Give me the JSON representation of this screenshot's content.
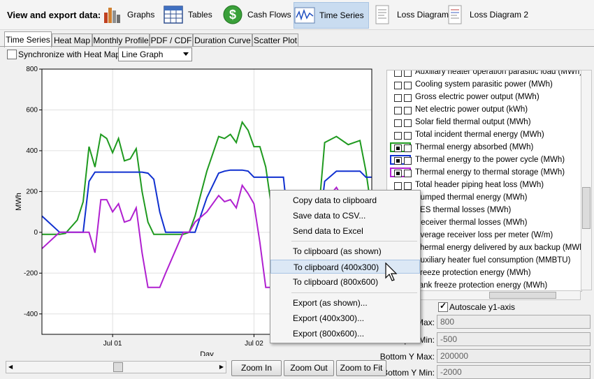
{
  "toolbar": {
    "label": "View and export data:",
    "buttons": [
      {
        "label": "Graphs",
        "icon": "bar-chart-icon"
      },
      {
        "label": "Tables",
        "icon": "table-icon"
      },
      {
        "label": "Cash Flows",
        "icon": "dollar-icon"
      },
      {
        "label": "Time Series",
        "icon": "waveform-icon",
        "active": true
      },
      {
        "label": "Loss Diagram",
        "icon": "document-icon"
      },
      {
        "label": "Loss Diagram 2",
        "icon": "document-icon"
      }
    ]
  },
  "tabs": [
    "Time Series",
    "Heat Map",
    "Monthly Profile",
    "PDF / CDF",
    "Duration Curve",
    "Scatter Plot"
  ],
  "active_tab": "Time Series",
  "sync_label": "Synchronize with Heat Map",
  "graph_type": "Line Graph",
  "variables": [
    {
      "label": "Auxiliary heater operation parasitic load (MWh)",
      "checked": false
    },
    {
      "label": "Cooling system parasitic power (MWh)",
      "checked": false
    },
    {
      "label": "Gross electric power output (MWh)",
      "checked": false
    },
    {
      "label": "Net electric power output (kWh)",
      "checked": false
    },
    {
      "label": "Solar field thermal output (MWh)",
      "checked": false
    },
    {
      "label": "Total incident thermal energy (MWh)",
      "checked": false
    },
    {
      "label": "Thermal energy absorbed (MWh)",
      "checked": true,
      "color": "#1f9a1f"
    },
    {
      "label": "Thermal energy to the power cycle (MWh)",
      "checked": true,
      "color": "#1030d0"
    },
    {
      "label": "Thermal energy to thermal storage (MWh)",
      "checked": true,
      "color": "#b020d0"
    },
    {
      "label": "Total header piping heat loss (MWh)",
      "checked": false
    },
    {
      "label": "Pumped thermal energy (MWh)",
      "checked": false
    },
    {
      "label": "TES thermal losses (MWh)",
      "checked": false
    },
    {
      "label": "Receiver thermal losses (MWh)",
      "checked": false
    },
    {
      "label": "Average receiver loss per meter (W/m)",
      "checked": false
    },
    {
      "label": "Thermal energy delivered by aux backup (MWh)",
      "checked": false
    },
    {
      "label": "Auxiliary heater fuel consumption (MMBTU)",
      "checked": false
    },
    {
      "label": "Freeze protection energy (MWh)",
      "checked": false
    },
    {
      "label": "Tank freeze protection energy (MWh)",
      "checked": false
    }
  ],
  "autoscale_label": "Autoscale y1-axis",
  "fields": [
    {
      "label": "Top Y Max:",
      "value": "800"
    },
    {
      "label": "Top Y Min:",
      "value": "-500"
    },
    {
      "label": "Bottom Y Max:",
      "value": "200000"
    },
    {
      "label": "Bottom Y Min:",
      "value": "-2000"
    }
  ],
  "buttons": {
    "zoom_in": "Zoom In",
    "zoom_out": "Zoom Out",
    "zoom_fit": "Zoom to Fit"
  },
  "context_menu": [
    "Copy data to clipboard",
    "Save data to CSV...",
    "Send data to Excel",
    "To clipboard (as shown)",
    "To clipboard (400x300)",
    "To clipboard (800x600)",
    "Export (as shown)...",
    "Export (400x300)...",
    "Export (800x600)..."
  ],
  "context_menu_hover": "To clipboard (400x300)",
  "chart_data": {
    "type": "line",
    "xlabel": "Day",
    "ylabel": "MWh",
    "ylim": [
      -500,
      800
    ],
    "xlim": [
      0,
      56
    ],
    "yticks": [
      "800",
      "600",
      "400",
      "200",
      "0",
      "-200",
      "-400"
    ],
    "xticks": [
      {
        "label": "Jul 01",
        "x": 12
      },
      {
        "label": "Jul 02",
        "x": 36
      }
    ],
    "grid": true,
    "x": [
      0,
      3,
      4,
      6,
      7,
      8,
      9,
      10,
      11,
      12,
      13,
      14,
      15,
      16,
      17,
      18,
      19,
      20,
      21,
      24,
      25,
      26,
      28,
      30,
      31,
      32,
      33,
      34,
      35,
      36,
      37,
      38,
      39,
      40,
      41,
      42,
      43,
      44,
      45,
      47,
      48,
      50,
      52,
      54,
      55,
      56
    ],
    "series": [
      {
        "name": "Thermal energy absorbed (MWh)",
        "color": "#1f9a1f",
        "values": [
          -10,
          -10,
          -5,
          60,
          150,
          420,
          320,
          480,
          460,
          390,
          460,
          350,
          360,
          410,
          200,
          50,
          -10,
          -10,
          -10,
          -10,
          0,
          80,
          300,
          470,
          460,
          480,
          440,
          540,
          500,
          420,
          420,
          320,
          120,
          -10,
          -10,
          -10,
          -10,
          -10,
          0,
          100,
          440,
          470,
          430,
          450,
          300,
          100
        ]
      },
      {
        "name": "Thermal energy to the power cycle (MWh)",
        "color": "#1030d0",
        "values": [
          80,
          0,
          0,
          0,
          0,
          250,
          295,
          295,
          295,
          295,
          295,
          295,
          295,
          295,
          295,
          290,
          260,
          100,
          0,
          0,
          0,
          0,
          170,
          290,
          300,
          305,
          305,
          305,
          300,
          270,
          270,
          270,
          270,
          270,
          270,
          0,
          0,
          0,
          0,
          0,
          250,
          300,
          300,
          300,
          270,
          270
        ]
      },
      {
        "name": "Thermal energy to thermal storage (MWh)",
        "color": "#b020d0",
        "values": [
          -80,
          0,
          0,
          0,
          0,
          0,
          -100,
          160,
          160,
          100,
          140,
          50,
          60,
          120,
          -100,
          -270,
          -270,
          -270,
          -200,
          0,
          0,
          50,
          100,
          180,
          150,
          160,
          120,
          230,
          190,
          140,
          -50,
          -270,
          -270,
          -270,
          -200,
          0,
          0,
          0,
          0,
          0,
          150,
          220,
          120,
          160,
          50,
          -150
        ]
      }
    ]
  }
}
